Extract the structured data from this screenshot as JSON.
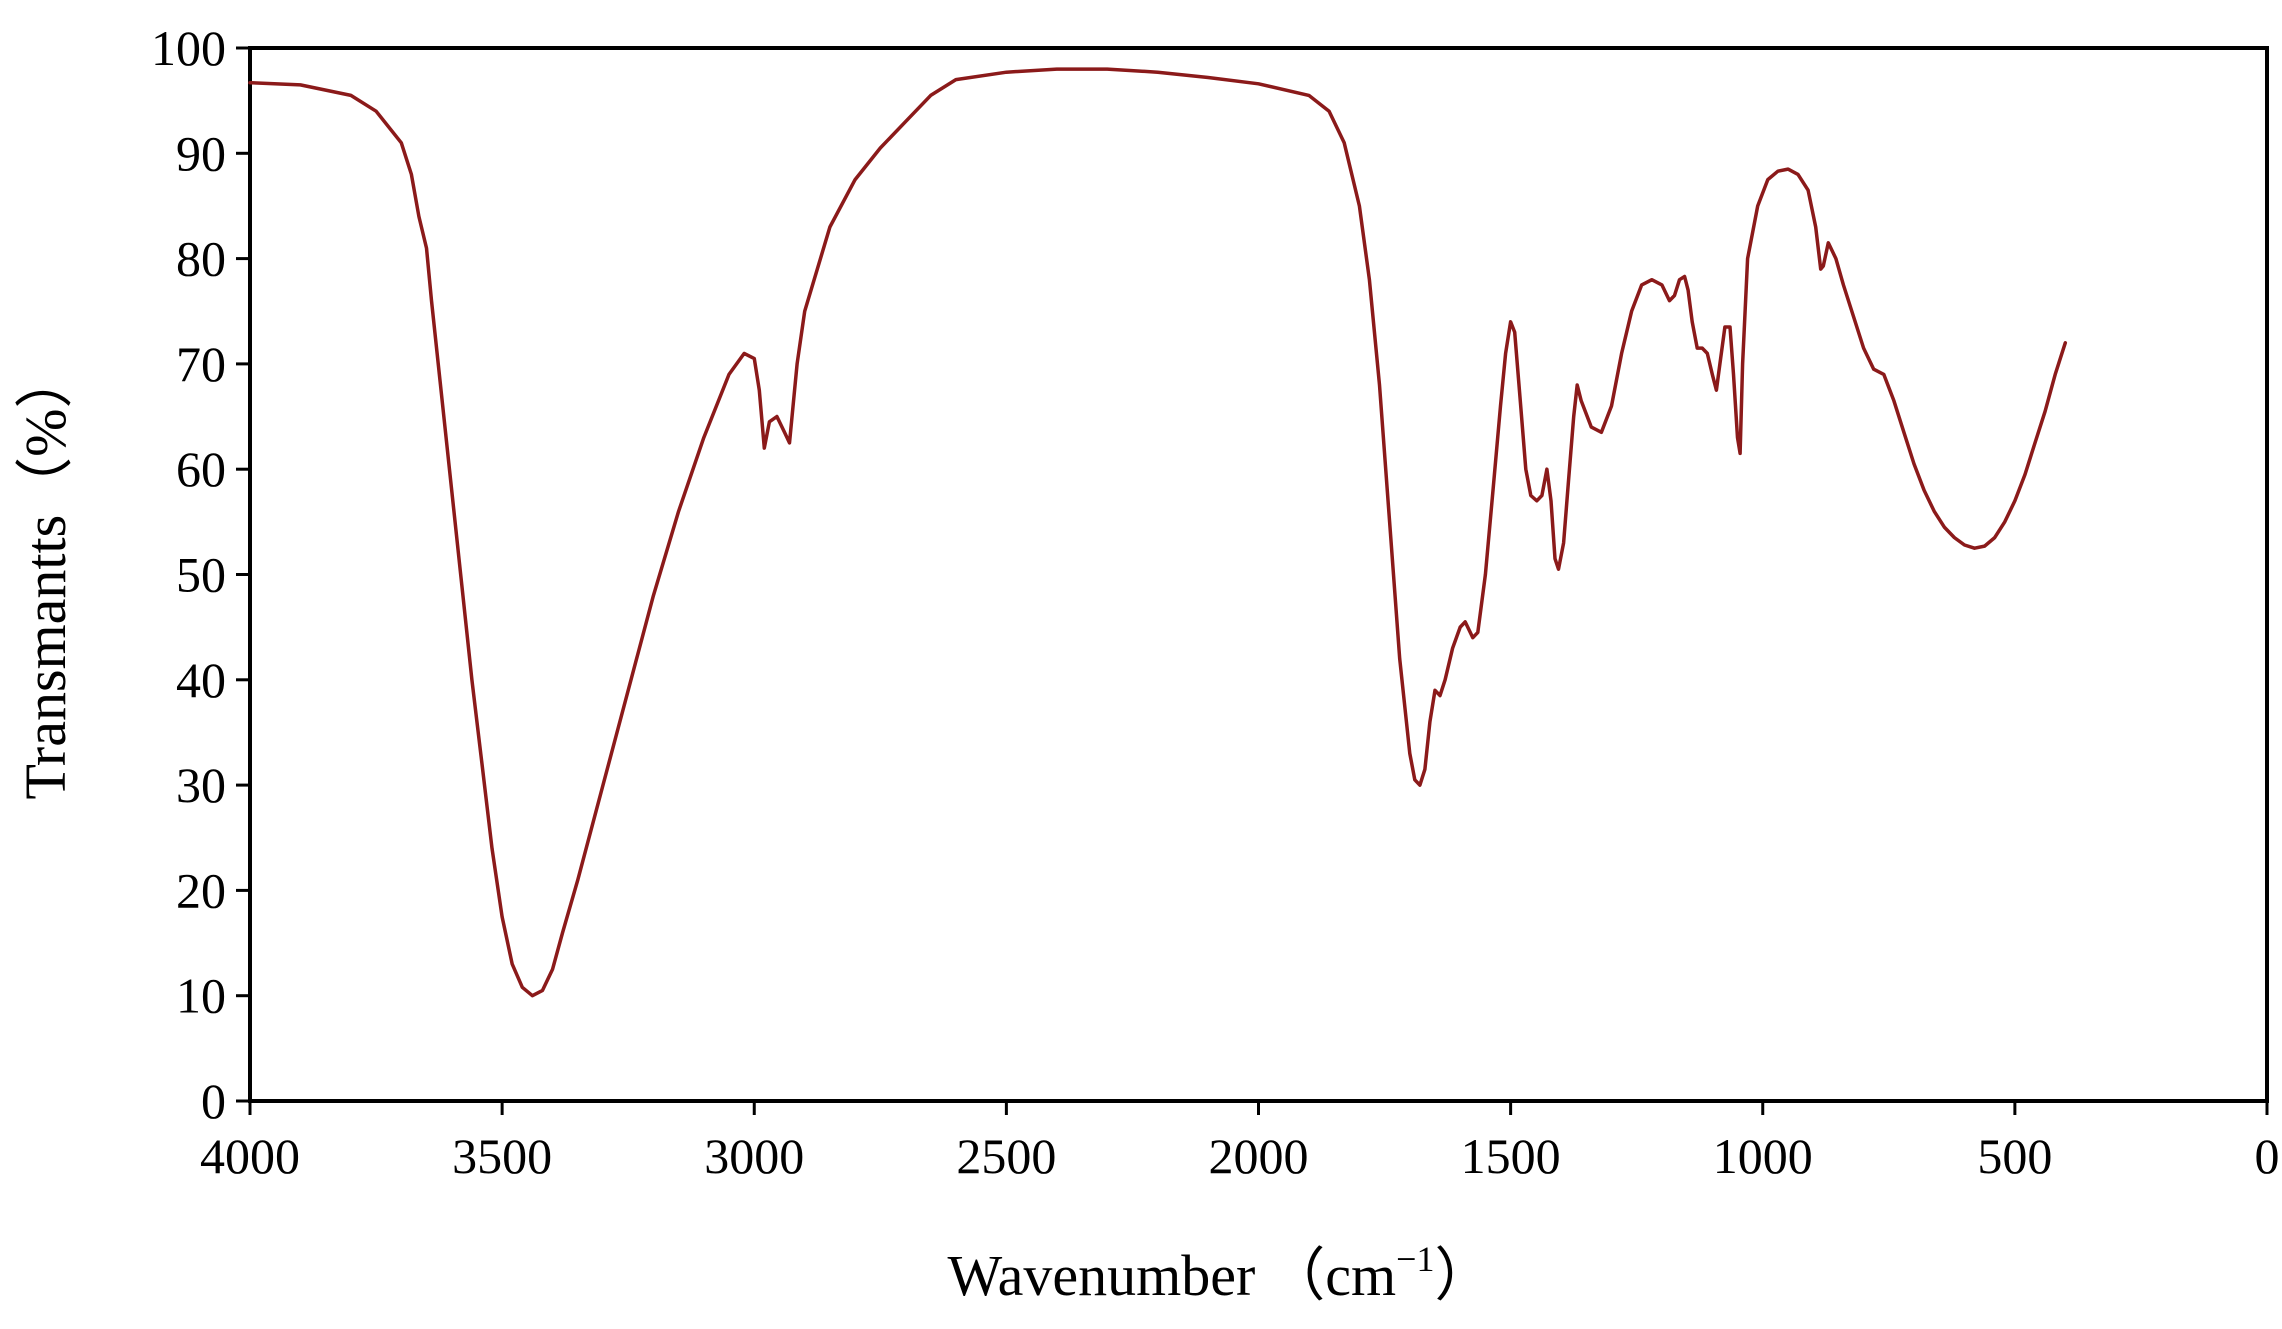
{
  "chart_data": {
    "type": "line",
    "title": "",
    "xlabel": "Wavenumber",
    "xlabel_unit": "（cm",
    "xlabel_unit_sup": "−1",
    "xlabel_unit_close": "）",
    "ylabel": "Transmantts（%）",
    "xlim": [
      4000,
      0
    ],
    "ylim": [
      0,
      100
    ],
    "x_reversed": true,
    "grid": false,
    "x_ticks": [
      "4000",
      "3500",
      "3000",
      "2500",
      "2000",
      "1500",
      "1000",
      "500",
      "0"
    ],
    "y_ticks": [
      "0",
      "10",
      "20",
      "30",
      "40",
      "50",
      "60",
      "70",
      "80",
      "90",
      "100"
    ],
    "series": [
      {
        "color": "#8B1A1A",
        "points": [
          [
            4000,
            96.7
          ],
          [
            3900,
            96.5
          ],
          [
            3800,
            95.5
          ],
          [
            3750,
            94
          ],
          [
            3700,
            91
          ],
          [
            3680,
            88
          ],
          [
            3665,
            84
          ],
          [
            3650,
            81
          ],
          [
            3640,
            76
          ],
          [
            3620,
            67
          ],
          [
            3600,
            58
          ],
          [
            3580,
            49
          ],
          [
            3560,
            40
          ],
          [
            3540,
            32
          ],
          [
            3520,
            24
          ],
          [
            3500,
            17.5
          ],
          [
            3480,
            13
          ],
          [
            3460,
            10.8
          ],
          [
            3440,
            10
          ],
          [
            3420,
            10.5
          ],
          [
            3400,
            12.5
          ],
          [
            3380,
            16
          ],
          [
            3350,
            21
          ],
          [
            3300,
            30
          ],
          [
            3250,
            39
          ],
          [
            3200,
            48
          ],
          [
            3150,
            56
          ],
          [
            3100,
            63
          ],
          [
            3050,
            69
          ],
          [
            3020,
            71
          ],
          [
            3000,
            70.5
          ],
          [
            2990,
            67.5
          ],
          [
            2980,
            62
          ],
          [
            2970,
            64.5
          ],
          [
            2955,
            65
          ],
          [
            2940,
            63.5
          ],
          [
            2930,
            62.5
          ],
          [
            2915,
            70
          ],
          [
            2900,
            75
          ],
          [
            2850,
            83
          ],
          [
            2800,
            87.5
          ],
          [
            2750,
            90.5
          ],
          [
            2700,
            93
          ],
          [
            2650,
            95.5
          ],
          [
            2600,
            97
          ],
          [
            2500,
            97.7
          ],
          [
            2400,
            98
          ],
          [
            2300,
            98
          ],
          [
            2200,
            97.7
          ],
          [
            2100,
            97.2
          ],
          [
            2000,
            96.6
          ],
          [
            1900,
            95.5
          ],
          [
            1860,
            94
          ],
          [
            1830,
            91
          ],
          [
            1800,
            85
          ],
          [
            1780,
            78
          ],
          [
            1760,
            68
          ],
          [
            1740,
            55
          ],
          [
            1720,
            42
          ],
          [
            1700,
            33
          ],
          [
            1690,
            30.5
          ],
          [
            1680,
            30
          ],
          [
            1670,
            31.5
          ],
          [
            1660,
            36
          ],
          [
            1650,
            39
          ],
          [
            1640,
            38.5
          ],
          [
            1630,
            40
          ],
          [
            1615,
            43
          ],
          [
            1600,
            45
          ],
          [
            1590,
            45.5
          ],
          [
            1575,
            44
          ],
          [
            1565,
            44.5
          ],
          [
            1550,
            50
          ],
          [
            1535,
            58
          ],
          [
            1520,
            66
          ],
          [
            1510,
            71
          ],
          [
            1500,
            74
          ],
          [
            1492,
            73
          ],
          [
            1480,
            66
          ],
          [
            1470,
            60
          ],
          [
            1460,
            57.5
          ],
          [
            1448,
            57
          ],
          [
            1438,
            57.5
          ],
          [
            1428,
            60
          ],
          [
            1420,
            57
          ],
          [
            1412,
            51.5
          ],
          [
            1405,
            50.5
          ],
          [
            1395,
            53
          ],
          [
            1385,
            59
          ],
          [
            1375,
            65
          ],
          [
            1368,
            68
          ],
          [
            1360,
            66.5
          ],
          [
            1340,
            64
          ],
          [
            1320,
            63.5
          ],
          [
            1300,
            66
          ],
          [
            1280,
            71
          ],
          [
            1260,
            75
          ],
          [
            1240,
            77.5
          ],
          [
            1220,
            78
          ],
          [
            1200,
            77.5
          ],
          [
            1185,
            76
          ],
          [
            1175,
            76.5
          ],
          [
            1165,
            78
          ],
          [
            1155,
            78.3
          ],
          [
            1148,
            77
          ],
          [
            1140,
            74
          ],
          [
            1130,
            71.5
          ],
          [
            1120,
            71.5
          ],
          [
            1110,
            71
          ],
          [
            1100,
            69
          ],
          [
            1092,
            67.5
          ],
          [
            1085,
            70
          ],
          [
            1075,
            73.5
          ],
          [
            1065,
            73.5
          ],
          [
            1058,
            69
          ],
          [
            1050,
            63
          ],
          [
            1045,
            61.5
          ],
          [
            1040,
            70
          ],
          [
            1030,
            80
          ],
          [
            1010,
            85
          ],
          [
            990,
            87.5
          ],
          [
            970,
            88.3
          ],
          [
            950,
            88.5
          ],
          [
            930,
            88
          ],
          [
            910,
            86.5
          ],
          [
            895,
            83
          ],
          [
            885,
            79
          ],
          [
            880,
            79.3
          ],
          [
            870,
            81.5
          ],
          [
            855,
            80
          ],
          [
            840,
            77.5
          ],
          [
            820,
            74.5
          ],
          [
            800,
            71.5
          ],
          [
            780,
            69.5
          ],
          [
            760,
            69
          ],
          [
            740,
            66.5
          ],
          [
            720,
            63.5
          ],
          [
            700,
            60.5
          ],
          [
            680,
            58
          ],
          [
            660,
            56
          ],
          [
            640,
            54.5
          ],
          [
            620,
            53.5
          ],
          [
            600,
            52.8
          ],
          [
            580,
            52.5
          ],
          [
            560,
            52.7
          ],
          [
            540,
            53.5
          ],
          [
            520,
            55
          ],
          [
            500,
            57
          ],
          [
            480,
            59.5
          ],
          [
            460,
            62.5
          ],
          [
            440,
            65.5
          ],
          [
            420,
            69
          ],
          [
            400,
            72
          ]
        ]
      }
    ]
  }
}
